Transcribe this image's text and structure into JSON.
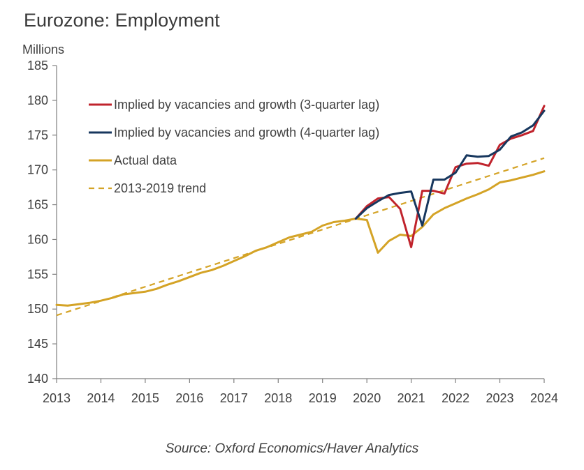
{
  "chart_data": {
    "type": "line",
    "title": "Eurozone: Employment",
    "unit_label": "Millions",
    "source": "Source: Oxford Economics/Haver Analytics",
    "ylim": [
      140,
      185
    ],
    "y_ticks": [
      140,
      145,
      150,
      155,
      160,
      165,
      170,
      175,
      180,
      185
    ],
    "xlim": [
      2013,
      2024
    ],
    "x_ticks": [
      2013,
      2014,
      2015,
      2016,
      2017,
      2018,
      2019,
      2020,
      2021,
      2022,
      2023,
      2024
    ],
    "grid": false,
    "legend_position": "top-left",
    "series": [
      {
        "name": "Implied by vacancies and growth (3-quarter lag)",
        "color": "#c0232c",
        "style": "solid",
        "x": [
          2019.75,
          2020.0,
          2020.25,
          2020.5,
          2020.75,
          2021.0,
          2021.25,
          2021.5,
          2021.75,
          2022.0,
          2022.25,
          2022.5,
          2022.75,
          2023.0,
          2023.25,
          2023.5,
          2023.75,
          2024.0
        ],
        "values": [
          163.0,
          164.8,
          165.9,
          166.1,
          164.4,
          158.9,
          167.0,
          167.0,
          166.6,
          170.4,
          170.9,
          171.0,
          170.6,
          173.6,
          174.5,
          175.0,
          175.6,
          179.2
        ]
      },
      {
        "name": "Implied by vacancies and growth (4-quarter lag)",
        "color": "#17375e",
        "style": "solid",
        "x": [
          2019.75,
          2020.0,
          2020.25,
          2020.5,
          2020.75,
          2021.0,
          2021.25,
          2021.5,
          2021.75,
          2022.0,
          2022.25,
          2022.5,
          2022.75,
          2023.0,
          2023.25,
          2023.5,
          2023.75,
          2024.0
        ],
        "values": [
          163.0,
          164.5,
          165.5,
          166.4,
          166.7,
          166.9,
          162.0,
          168.6,
          168.6,
          169.6,
          172.1,
          171.9,
          172.0,
          172.9,
          174.8,
          175.4,
          176.4,
          178.5
        ]
      },
      {
        "name": "Actual data",
        "color": "#d4a326",
        "style": "solid",
        "x": [
          2013.0,
          2013.25,
          2013.5,
          2013.75,
          2014.0,
          2014.25,
          2014.5,
          2014.75,
          2015.0,
          2015.25,
          2015.5,
          2015.75,
          2016.0,
          2016.25,
          2016.5,
          2016.75,
          2017.0,
          2017.25,
          2017.5,
          2017.75,
          2018.0,
          2018.25,
          2018.5,
          2018.75,
          2019.0,
          2019.25,
          2019.5,
          2019.75,
          2020.0,
          2020.25,
          2020.5,
          2020.75,
          2021.0,
          2021.25,
          2021.5,
          2021.75,
          2022.0,
          2022.25,
          2022.5,
          2022.75,
          2023.0,
          2023.25,
          2023.5,
          2023.75,
          2024.0
        ],
        "values": [
          150.6,
          150.5,
          150.7,
          150.9,
          151.2,
          151.6,
          152.1,
          152.3,
          152.5,
          152.9,
          153.5,
          154.0,
          154.6,
          155.2,
          155.6,
          156.2,
          156.9,
          157.6,
          158.4,
          158.9,
          159.6,
          160.3,
          160.7,
          161.1,
          162.0,
          162.5,
          162.7,
          163.0,
          162.8,
          158.1,
          159.8,
          160.7,
          160.5,
          161.8,
          163.6,
          164.5,
          165.2,
          165.9,
          166.5,
          167.2,
          168.2,
          168.5,
          168.9,
          169.3,
          169.8
        ]
      },
      {
        "name": "2013-2019 trend",
        "color": "#d4a326",
        "style": "dashed",
        "x": [
          2013.0,
          2024.0
        ],
        "values": [
          149.1,
          171.7
        ]
      }
    ]
  }
}
